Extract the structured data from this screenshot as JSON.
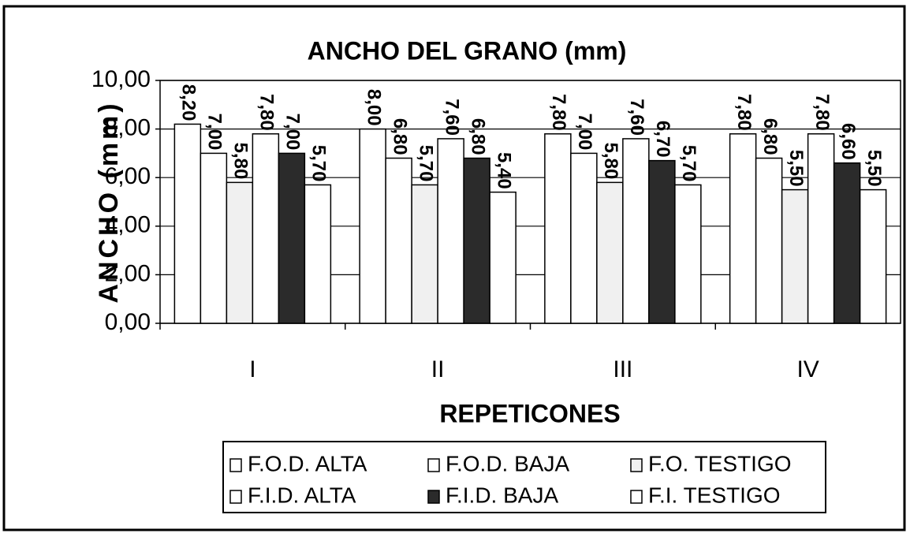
{
  "chart_data": {
    "type": "bar",
    "title": "ANCHO DEL GRANO (mm)",
    "x_label": "REPETICONES",
    "y_label": "ANCHO (mm)",
    "categories": [
      "I",
      "II",
      "III",
      "IV"
    ],
    "series": [
      {
        "name": "F.O.D. ALTA",
        "color": "#ffffff",
        "values": [
          8.2,
          8.0,
          7.8,
          7.8
        ],
        "value_labels": [
          "8,20",
          "8,00",
          "7,80",
          "7,80"
        ]
      },
      {
        "name": "F.O.D. BAJA",
        "color": "#ffffff",
        "values": [
          7.0,
          6.8,
          7.0,
          6.8
        ],
        "value_labels": [
          "7,00",
          "6,80",
          "7,00",
          "6,80"
        ]
      },
      {
        "name": "F.O. TESTIGO",
        "color": "#f0f0f0",
        "values": [
          5.8,
          5.7,
          5.8,
          5.5
        ],
        "value_labels": [
          "5,80",
          "5,70",
          "5,80",
          "5,50"
        ]
      },
      {
        "name": "F.I.D. ALTA",
        "color": "#ffffff",
        "values": [
          7.8,
          7.6,
          7.6,
          7.8
        ],
        "value_labels": [
          "7,80",
          "7,60",
          "7,60",
          "7,80"
        ]
      },
      {
        "name": "F.I.D. BAJA",
        "color": "#2b2b2b",
        "values": [
          7.0,
          6.8,
          6.7,
          6.6
        ],
        "value_labels": [
          "7,00",
          "6,80",
          "6,70",
          "6,60"
        ]
      },
      {
        "name": "F.I. TESTIGO",
        "color": "#ffffff",
        "values": [
          5.7,
          5.4,
          5.7,
          5.5
        ],
        "value_labels": [
          "5,70",
          "5,40",
          "5,70",
          "5,50"
        ]
      }
    ],
    "ylim": [
      0,
      10
    ],
    "yticks": [
      {
        "value": 0,
        "label": "0,00"
      },
      {
        "value": 2,
        "label": "2,00"
      },
      {
        "value": 4,
        "label": "4,00"
      },
      {
        "value": 6,
        "label": "6,00"
      },
      {
        "value": 8,
        "label": "8,00"
      },
      {
        "value": 10,
        "label": "10,00"
      }
    ],
    "grid": true,
    "legend": "bottom"
  }
}
